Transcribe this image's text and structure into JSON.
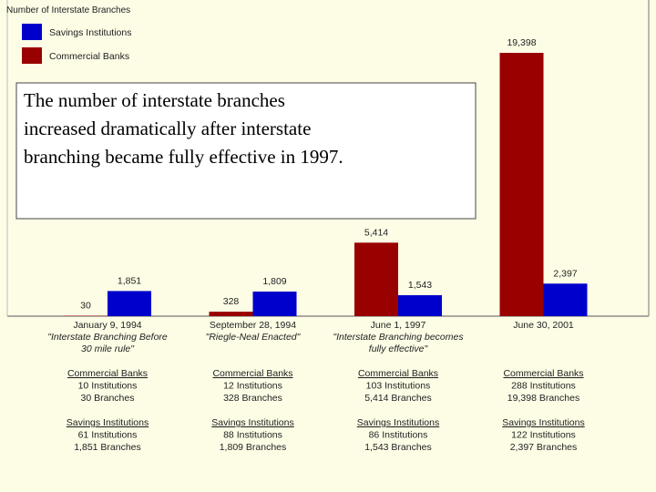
{
  "chart_data": {
    "type": "bar",
    "title": "Number of Interstate Branches",
    "categories": [
      "January 9, 1994",
      "September 28, 1994",
      "June 1, 1997",
      "June 30, 2001"
    ],
    "category_notes": [
      [
        "\"Interstate Branching Before",
        "30 mile rule\""
      ],
      [
        "\"Riegle-Neal Enacted\""
      ],
      [
        "\"Interstate Branching becomes",
        "fully effective\""
      ],
      []
    ],
    "series": [
      {
        "name": "Commercial Banks",
        "color": "#990000",
        "values": [
          30,
          328,
          5414,
          19398
        ],
        "value_labels": [
          "30",
          "328",
          "5,414",
          "19,398"
        ]
      },
      {
        "name": "Savings Institutions",
        "color": "#0000cc",
        "values": [
          1851,
          1809,
          1543,
          2397
        ],
        "value_labels": [
          "1,851",
          "1,809",
          "1,543",
          "2,397"
        ]
      }
    ],
    "legend_order": [
      1,
      0
    ],
    "annotation": [
      "The number of interstate branches",
      "increased dramatically after interstate",
      "branching became fully effective in 1997."
    ],
    "details": [
      [
        [
          "Commercial Banks",
          "10 Institutions",
          "30 Branches"
        ],
        [
          "Savings Institutions",
          "61 Institutions",
          "1,851 Branches"
        ]
      ],
      [
        [
          "Commercial Banks",
          "12 Institutions",
          "328 Branches"
        ],
        [
          "Savings Institutions",
          "88 Institutions",
          "1,809 Branches"
        ]
      ],
      [
        [
          "Commercial Banks",
          "103 Institutions",
          "5,414 Branches"
        ],
        [
          "Savings Institutions",
          "86 Institutions",
          "1,543 Branches"
        ]
      ],
      [
        [
          "Commercial Banks",
          "288 Institutions",
          "19,398 Branches"
        ],
        [
          "Savings Institutions",
          "122 Institutions",
          "2,397 Branches"
        ]
      ]
    ]
  }
}
